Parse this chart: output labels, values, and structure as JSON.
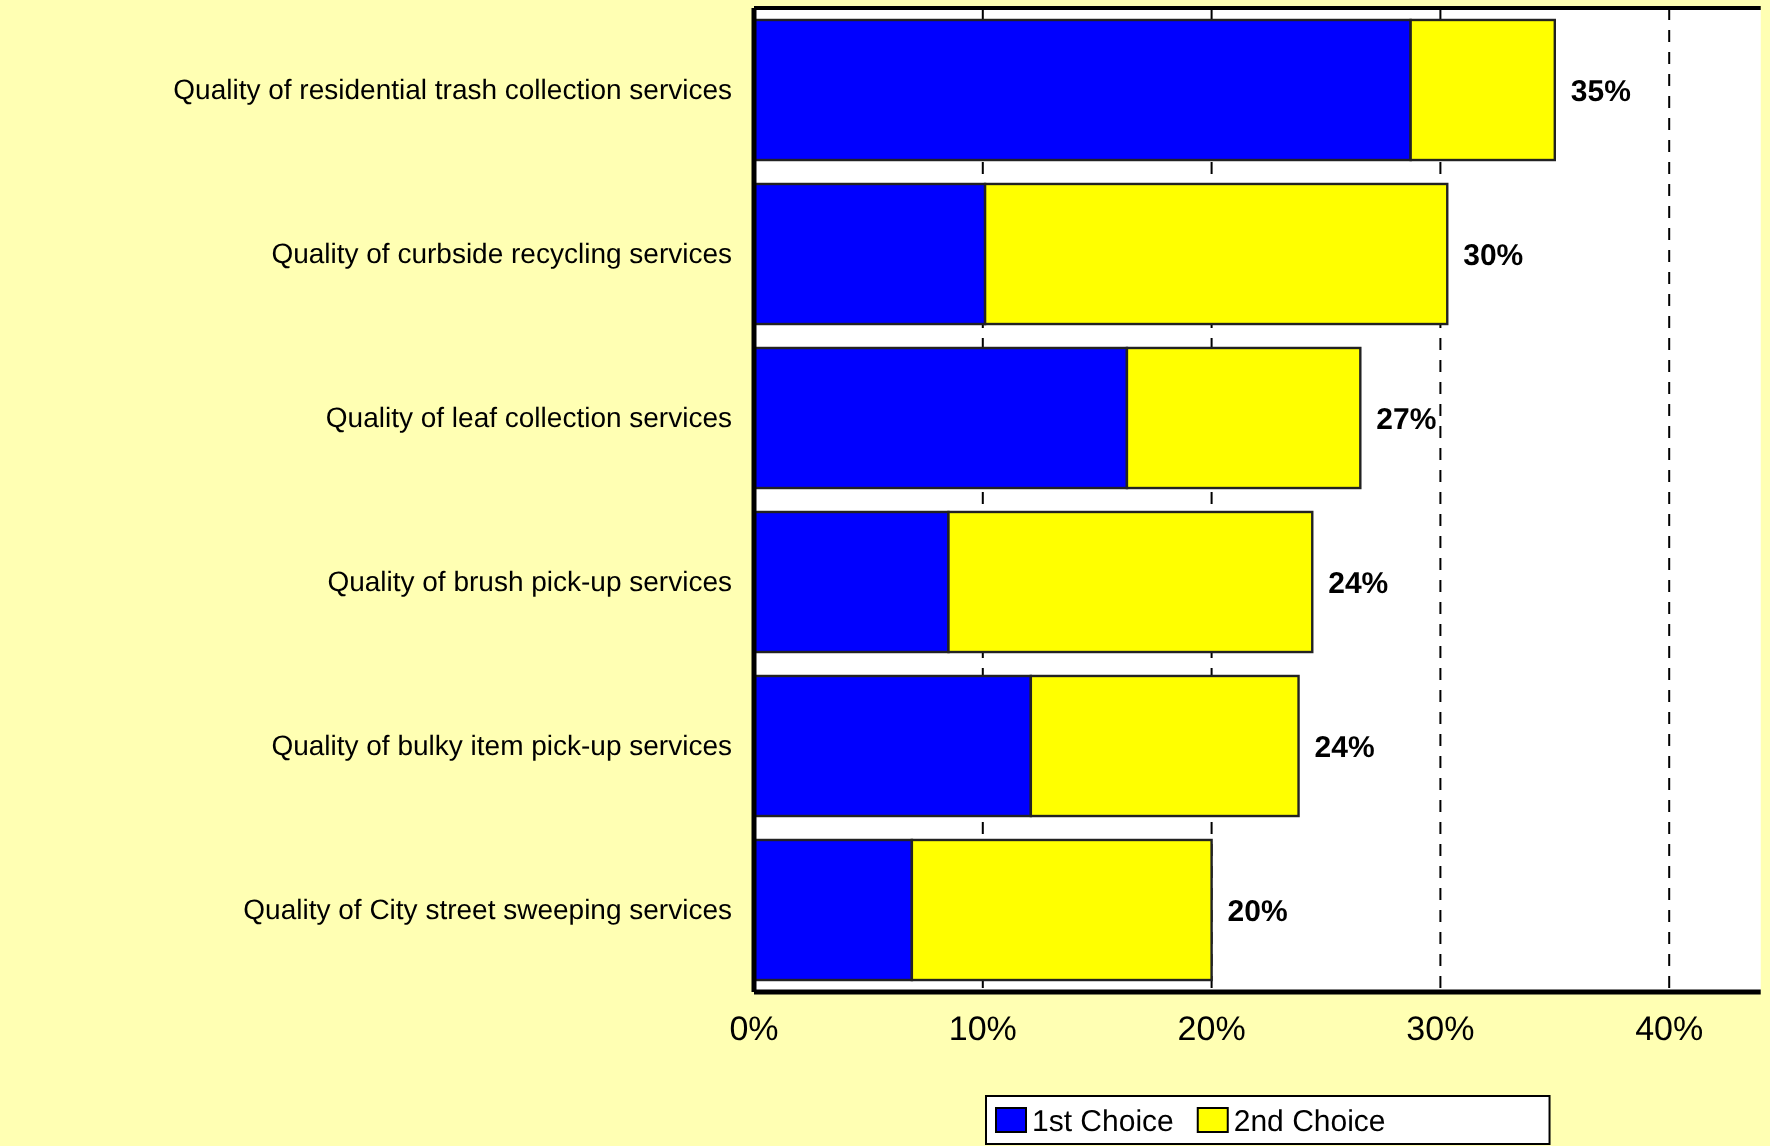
{
  "chart_data": {
    "type": "bar",
    "orientation": "horizontal",
    "stacked": true,
    "categories": [
      "Quality of residential trash collection services",
      "Quality of curbside recycling services",
      "Quality of leaf collection services",
      "Quality of brush pick-up services",
      "Quality of bulky item pick-up services",
      "Quality of City street sweeping services"
    ],
    "series": [
      {
        "name": "1st Choice",
        "color": "#0000ff",
        "values": [
          28.7,
          10.1,
          16.3,
          8.5,
          12.1,
          6.9
        ]
      },
      {
        "name": "2nd Choice",
        "color": "#ffff00",
        "values": [
          6.3,
          20.2,
          10.2,
          15.9,
          11.7,
          13.1
        ]
      }
    ],
    "xlim": [
      0,
      44
    ],
    "xticks": [
      {
        "value": 0,
        "label": "0%"
      },
      {
        "value": 10,
        "label": "10%"
      },
      {
        "value": 20,
        "label": "20%"
      },
      {
        "value": 30,
        "label": "30%"
      },
      {
        "value": 40,
        "label": "40%"
      }
    ],
    "grid": "x",
    "legend": "bottom",
    "totals": [
      "35%",
      "30%",
      "27%",
      "24%",
      "24%",
      "20%"
    ]
  }
}
